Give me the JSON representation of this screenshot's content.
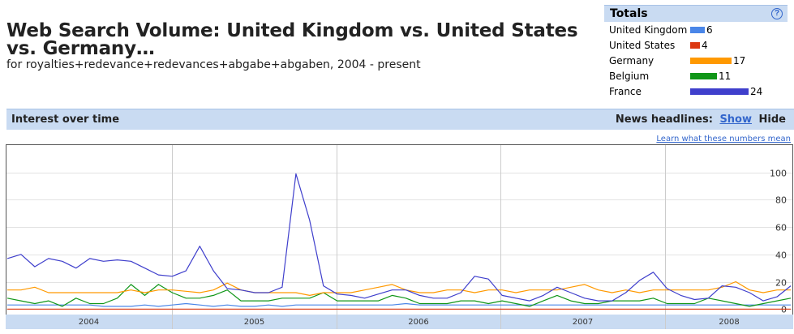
{
  "header": {
    "title": "Web Search Volume: United Kingdom vs. United States vs. Germany…",
    "subtitle": "for royalties+redevance+redevances+abgabe+abgaben, 2004 - present"
  },
  "totals": {
    "title": "Totals",
    "help_icon": "?",
    "items": [
      {
        "label": "United Kingdom",
        "value": "6",
        "color": "#4a86e8"
      },
      {
        "label": "United States",
        "value": "4",
        "color": "#dc3912"
      },
      {
        "label": "Germany",
        "value": "17",
        "color": "#ff9900"
      },
      {
        "label": "Belgium",
        "value": "11",
        "color": "#109618"
      },
      {
        "label": "France",
        "value": "24",
        "color": "#3f3fcc"
      }
    ]
  },
  "section": {
    "title": "Interest over time",
    "news_label": "News headlines:",
    "show_label": "Show",
    "hide_label": "Hide",
    "learn_link": "Learn what these numbers mean"
  },
  "chart_data": {
    "type": "line",
    "x_tick_labels": [
      "2004",
      "2005",
      "2006",
      "2007",
      "2008"
    ],
    "y_ticks": [
      0,
      20,
      40,
      60,
      80,
      100
    ],
    "ylim": [
      -4,
      120
    ],
    "grid": true,
    "series": [
      {
        "name": "France",
        "color": "#3f3fcc",
        "values": [
          37,
          40,
          31,
          37,
          35,
          30,
          37,
          35,
          36,
          35,
          30,
          25,
          24,
          28,
          46,
          28,
          15,
          14,
          12,
          12,
          16,
          99,
          65,
          17,
          11,
          10,
          8,
          11,
          14,
          14,
          10,
          8,
          8,
          12,
          24,
          22,
          10,
          8,
          6,
          10,
          16,
          12,
          8,
          6,
          6,
          12,
          21,
          27,
          15,
          10,
          7,
          8,
          17,
          16,
          12,
          6,
          9,
          17
        ]
      },
      {
        "name": "Germany",
        "color": "#ff9900",
        "values": [
          14,
          14,
          16,
          12,
          12,
          12,
          12,
          12,
          12,
          14,
          12,
          14,
          14,
          13,
          12,
          14,
          19,
          14,
          12,
          12,
          12,
          12,
          10,
          12,
          12,
          12,
          14,
          16,
          18,
          14,
          12,
          12,
          14,
          14,
          12,
          14,
          14,
          12,
          14,
          14,
          14,
          16,
          18,
          14,
          12,
          14,
          12,
          14,
          14,
          14,
          14,
          14,
          16,
          20,
          14,
          12,
          14,
          14
        ]
      },
      {
        "name": "Belgium",
        "color": "#109618",
        "values": [
          8,
          6,
          4,
          6,
          2,
          8,
          4,
          4,
          8,
          18,
          10,
          18,
          12,
          8,
          8,
          10,
          14,
          6,
          6,
          6,
          8,
          8,
          8,
          12,
          6,
          6,
          6,
          6,
          10,
          8,
          4,
          4,
          4,
          6,
          6,
          4,
          6,
          4,
          2,
          6,
          10,
          6,
          4,
          4,
          6,
          6,
          6,
          8,
          4,
          4,
          4,
          8,
          6,
          4,
          2,
          4,
          6,
          8
        ]
      },
      {
        "name": "United Kingdom",
        "color": "#4a86e8",
        "values": [
          3,
          3,
          3,
          3,
          3,
          3,
          3,
          2,
          2,
          2,
          3,
          2,
          3,
          4,
          3,
          2,
          3,
          2,
          2,
          3,
          2,
          3,
          3,
          3,
          3,
          3,
          3,
          3,
          3,
          4,
          3,
          3,
          3,
          3,
          3,
          3,
          3,
          3,
          3,
          3,
          3,
          3,
          3,
          3,
          3,
          3,
          3,
          3,
          3,
          3,
          3,
          3,
          3,
          3,
          3,
          3,
          3,
          3
        ]
      },
      {
        "name": "United States",
        "color": "#dc3912",
        "values": [
          0,
          0,
          0,
          0,
          0,
          0,
          0,
          0,
          0,
          0,
          0,
          0,
          0,
          0,
          0,
          0,
          0,
          0,
          0,
          0,
          0,
          0,
          0,
          0,
          0,
          0,
          0,
          0,
          0,
          0,
          0,
          0,
          0,
          0,
          0,
          0,
          0,
          0,
          0,
          0,
          0,
          0,
          0,
          0,
          0,
          0,
          0,
          0,
          0,
          0,
          0,
          0,
          0,
          0,
          0,
          0,
          0,
          0
        ]
      }
    ]
  }
}
